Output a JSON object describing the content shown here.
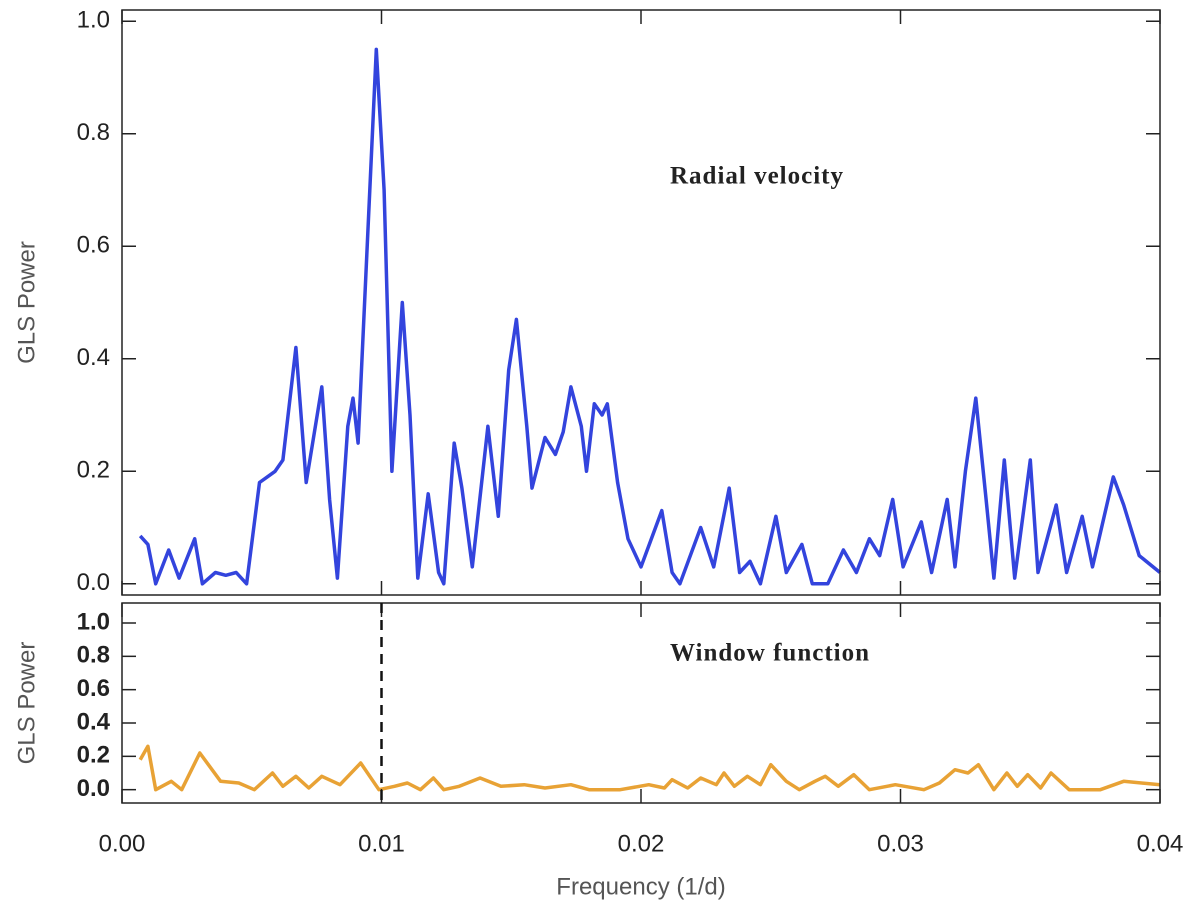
{
  "chart_data": [
    {
      "type": "line",
      "annotation": "Radial velocity",
      "y_label": "GLS Power",
      "color": "#3344dd",
      "xlim": [
        0,
        0.04
      ],
      "ylim": [
        -0.02,
        1.02
      ],
      "xticks": [
        0,
        0.01,
        0.02,
        0.03,
        0.04
      ],
      "yticks": [
        {
          "value": 0,
          "label": "0.0"
        },
        0.2,
        0.4,
        0.6,
        0.8,
        {
          "value": 1,
          "label": "1.0"
        }
      ],
      "x": [
        0.0007,
        0.001,
        0.0013,
        0.0018,
        0.0022,
        0.0028,
        0.0031,
        0.0036,
        0.004,
        0.0044,
        0.0048,
        0.0053,
        0.0056,
        0.0059,
        0.0062,
        0.0067,
        0.0071,
        0.0077,
        0.008,
        0.0083,
        0.0087,
        0.0089,
        0.0091,
        0.0094,
        0.0098,
        0.0101,
        0.0104,
        0.0108,
        0.0111,
        0.0114,
        0.0118,
        0.0122,
        0.0124,
        0.0128,
        0.0131,
        0.0135,
        0.0141,
        0.0145,
        0.0149,
        0.0152,
        0.0156,
        0.0158,
        0.0163,
        0.0167,
        0.017,
        0.0173,
        0.0177,
        0.0179,
        0.0182,
        0.0185,
        0.0187,
        0.0191,
        0.0195,
        0.02,
        0.0208,
        0.0212,
        0.0215,
        0.0223,
        0.0228,
        0.0234,
        0.0238,
        0.0242,
        0.0246,
        0.0252,
        0.0256,
        0.0262,
        0.0266,
        0.0272,
        0.0278,
        0.0283,
        0.0288,
        0.0292,
        0.0297,
        0.0301,
        0.0308,
        0.0312,
        0.0318,
        0.0321,
        0.0325,
        0.0329,
        0.0333,
        0.0336,
        0.034,
        0.0344,
        0.035,
        0.0353,
        0.036,
        0.0364,
        0.037,
        0.0374,
        0.0382,
        0.0386,
        0.0392,
        0.04
      ],
      "values": [
        0.085,
        0.07,
        0,
        0.06,
        0.01,
        0.08,
        0,
        0.02,
        0.015,
        0.02,
        0,
        0.18,
        0.19,
        0.2,
        0.22,
        0.42,
        0.18,
        0.35,
        0.15,
        0.01,
        0.28,
        0.33,
        0.25,
        0.55,
        0.95,
        0.7,
        0.2,
        0.5,
        0.3,
        0.01,
        0.16,
        0.02,
        0,
        0.25,
        0.17,
        0.03,
        0.28,
        0.12,
        0.38,
        0.47,
        0.28,
        0.17,
        0.26,
        0.23,
        0.27,
        0.35,
        0.28,
        0.2,
        0.32,
        0.3,
        0.32,
        0.18,
        0.08,
        0.03,
        0.13,
        0.02,
        0,
        0.1,
        0.03,
        0.17,
        0.02,
        0.04,
        0,
        0.12,
        0.02,
        0.07,
        0,
        0,
        0.06,
        0.02,
        0.08,
        0.05,
        0.15,
        0.03,
        0.11,
        0.02,
        0.15,
        0.03,
        0.2,
        0.33,
        0.15,
        0.01,
        0.22,
        0.01,
        0.22,
        0.02,
        0.14,
        0.02,
        0.12,
        0.03,
        0.19,
        0.14,
        0.05,
        0.02
      ]
    },
    {
      "type": "line",
      "annotation": "Window function",
      "y_label": "GLS Power",
      "x_label": "Frequency (1/d)",
      "color": "#e8a235",
      "marker_x": 0.01,
      "xlim": [
        0,
        0.04
      ],
      "ylim": [
        -0.08,
        1.12
      ],
      "xticks": [
        {
          "value": 0,
          "label": "0.00"
        },
        0.01,
        0.02,
        0.03,
        0.04
      ],
      "yticks": [
        {
          "value": 0,
          "label": "0.0"
        },
        0.2,
        0.4,
        0.6,
        0.8,
        {
          "value": 1,
          "label": "1.0"
        }
      ],
      "x": [
        0.0007,
        0.001,
        0.0013,
        0.0019,
        0.0023,
        0.003,
        0.0038,
        0.0045,
        0.0051,
        0.0058,
        0.0062,
        0.0067,
        0.0072,
        0.0077,
        0.0084,
        0.0092,
        0.0099,
        0.0105,
        0.011,
        0.0115,
        0.012,
        0.0124,
        0.013,
        0.0138,
        0.0146,
        0.0155,
        0.0163,
        0.0173,
        0.018,
        0.0192,
        0.0203,
        0.0209,
        0.0212,
        0.0218,
        0.0223,
        0.0229,
        0.0232,
        0.0236,
        0.0241,
        0.0246,
        0.025,
        0.0256,
        0.0261,
        0.0267,
        0.0271,
        0.0276,
        0.0282,
        0.0288,
        0.0298,
        0.0309,
        0.0315,
        0.0321,
        0.0326,
        0.033,
        0.0336,
        0.0341,
        0.0345,
        0.0349,
        0.0354,
        0.0358,
        0.0365,
        0.0377,
        0.0386,
        0.04
      ],
      "values": [
        0.18,
        0.26,
        0,
        0.05,
        0,
        0.22,
        0.05,
        0.04,
        0,
        0.1,
        0.02,
        0.08,
        0.01,
        0.08,
        0.03,
        0.16,
        0,
        0.02,
        0.04,
        0,
        0.07,
        0,
        0.02,
        0.07,
        0.02,
        0.03,
        0.01,
        0.03,
        0,
        0,
        0.03,
        0.01,
        0.06,
        0.01,
        0.07,
        0.03,
        0.1,
        0.02,
        0.08,
        0.03,
        0.15,
        0.05,
        0,
        0.05,
        0.08,
        0.02,
        0.09,
        0,
        0.03,
        0,
        0.04,
        0.12,
        0.1,
        0.15,
        0,
        0.1,
        0.02,
        0.09,
        0.01,
        0.1,
        0,
        0,
        0.05,
        0.03
      ]
    }
  ]
}
